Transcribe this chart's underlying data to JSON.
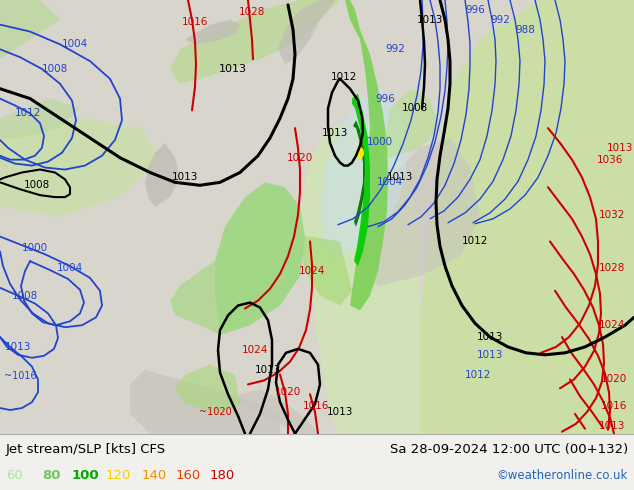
{
  "title_left": "Jet stream/SLP [kts] CFS",
  "title_right": "Sa 28-09-2024 12:00 UTC (00+132)",
  "credit": "©weatheronline.co.uk",
  "legend_values": [
    "60",
    "80",
    "100",
    "120",
    "140",
    "160",
    "180"
  ],
  "legend_colors": [
    "#a8e6a0",
    "#70c860",
    "#00aa00",
    "#f0d000",
    "#f09000",
    "#e04000",
    "#c00000"
  ],
  "fig_width": 6.34,
  "fig_height": 4.9,
  "dpi": 100,
  "bg_light_gray": "#d0cfc8",
  "bg_light_green": "#c8ddb0",
  "bg_medium_green": "#a0c878",
  "bg_dark_green": "#00bb00",
  "bg_very_dark_green": "#007700",
  "bg_blue_tint": "#b0d0e8",
  "map_bg": "#d8d4cc"
}
